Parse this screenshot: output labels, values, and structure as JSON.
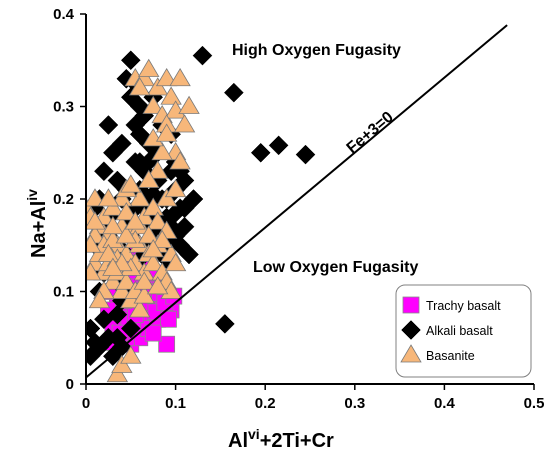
{
  "chart_data": {
    "type": "scatter",
    "title": "",
    "xlim": [
      0,
      0.5
    ],
    "ylim": [
      0,
      0.4
    ],
    "x_ticks": [
      "0",
      "0.1",
      "0.2",
      "0.3",
      "0.4",
      "0.5"
    ],
    "y_ticks": [
      "0",
      "0.1",
      "0.2",
      "0.3",
      "0.4"
    ],
    "x_ticks_values": [
      0,
      0.1,
      0.2,
      0.3,
      0.4,
      0.5
    ],
    "y_ticks_values": [
      0,
      0.1,
      0.2,
      0.3,
      0.4
    ],
    "xlabel": {
      "base1": "Al",
      "sup": "vi",
      "base2": "+2Ti+Cr"
    },
    "ylabel": {
      "base": "Na+Al",
      "sup": "iv"
    },
    "grid": false,
    "legend_position": "bottom-right",
    "annotations": {
      "high": "High Oxygen Fugasity",
      "low": "Low Oxygen Fugasity",
      "line": "Fe+3=0"
    },
    "reference_line": {
      "from": [
        0,
        0.007
      ],
      "to": [
        0.47,
        0.388
      ]
    },
    "series": [
      {
        "name": "Trachy basalt",
        "marker": "square",
        "color": "#ff00ff",
        "points": [
          [
            0.03,
            0.045
          ],
          [
            0.05,
            0.043
          ],
          [
            0.09,
            0.043
          ],
          [
            0.035,
            0.07
          ],
          [
            0.04,
            0.08
          ],
          [
            0.045,
            0.07
          ],
          [
            0.05,
            0.09
          ],
          [
            0.055,
            0.06
          ],
          [
            0.06,
            0.08
          ],
          [
            0.065,
            0.1
          ],
          [
            0.07,
            0.075
          ],
          [
            0.075,
            0.09
          ],
          [
            0.08,
            0.11
          ],
          [
            0.085,
            0.1
          ],
          [
            0.09,
            0.095
          ],
          [
            0.095,
            0.08
          ],
          [
            0.06,
            0.12
          ],
          [
            0.065,
            0.11
          ],
          [
            0.07,
            0.13
          ],
          [
            0.075,
            0.12
          ],
          [
            0.05,
            0.14
          ],
          [
            0.055,
            0.11
          ],
          [
            0.04,
            0.1
          ],
          [
            0.045,
            0.12
          ],
          [
            0.035,
            0.095
          ],
          [
            0.03,
            0.06
          ],
          [
            0.025,
            0.08
          ],
          [
            0.03,
            0.1
          ],
          [
            0.06,
            0.05
          ],
          [
            0.065,
            0.065
          ],
          [
            0.07,
            0.06
          ],
          [
            0.08,
            0.07
          ],
          [
            0.085,
            0.085
          ],
          [
            0.045,
            0.05
          ],
          [
            0.05,
            0.115
          ],
          [
            0.058,
            0.095
          ],
          [
            0.062,
            0.135
          ],
          [
            0.068,
            0.088
          ],
          [
            0.072,
            0.1
          ],
          [
            0.078,
            0.078
          ],
          [
            0.082,
            0.098
          ],
          [
            0.088,
            0.088
          ],
          [
            0.092,
            0.07
          ],
          [
            0.055,
            0.075
          ],
          [
            0.042,
            0.09
          ],
          [
            0.038,
            0.055
          ],
          [
            0.098,
            0.095
          ],
          [
            0.075,
            0.055
          ],
          [
            0.048,
            0.105
          ],
          [
            0.066,
            0.145
          ]
        ]
      },
      {
        "name": "Alkali basalt",
        "marker": "diamond",
        "color": "#000000",
        "points": [
          [
            0.005,
            0.03
          ],
          [
            0.01,
            0.045
          ],
          [
            0.02,
            0.07
          ],
          [
            0.03,
            0.03
          ],
          [
            0.04,
            0.04
          ],
          [
            0.035,
            0.05
          ],
          [
            0.045,
            0.33
          ],
          [
            0.05,
            0.31
          ],
          [
            0.05,
            0.35
          ],
          [
            0.055,
            0.325
          ],
          [
            0.06,
            0.3
          ],
          [
            0.06,
            0.27
          ],
          [
            0.065,
            0.29
          ],
          [
            0.07,
            0.24
          ],
          [
            0.07,
            0.26
          ],
          [
            0.075,
            0.31
          ],
          [
            0.08,
            0.22
          ],
          [
            0.085,
            0.2
          ],
          [
            0.09,
            0.18
          ],
          [
            0.095,
            0.23
          ],
          [
            0.1,
            0.21
          ],
          [
            0.105,
            0.19
          ],
          [
            0.11,
            0.17
          ],
          [
            0.115,
            0.14
          ],
          [
            0.13,
            0.355
          ],
          [
            0.165,
            0.315
          ],
          [
            0.195,
            0.25
          ],
          [
            0.215,
            0.258
          ],
          [
            0.245,
            0.248
          ],
          [
            0.155,
            0.065
          ],
          [
            0.025,
            0.28
          ],
          [
            0.03,
            0.25
          ],
          [
            0.035,
            0.22
          ],
          [
            0.04,
            0.2
          ],
          [
            0.045,
            0.18
          ],
          [
            0.05,
            0.16
          ],
          [
            0.055,
            0.19
          ],
          [
            0.06,
            0.21
          ],
          [
            0.065,
            0.23
          ],
          [
            0.07,
            0.2
          ],
          [
            0.075,
            0.18
          ],
          [
            0.08,
            0.16
          ],
          [
            0.085,
            0.14
          ],
          [
            0.09,
            0.15
          ],
          [
            0.095,
            0.17
          ],
          [
            0.1,
            0.16
          ],
          [
            0.105,
            0.15
          ],
          [
            0.01,
            0.19
          ],
          [
            0.015,
            0.2
          ],
          [
            0.02,
            0.17
          ],
          [
            0.025,
            0.16
          ],
          [
            0.03,
            0.13
          ],
          [
            0.035,
            0.11
          ],
          [
            0.04,
            0.09
          ],
          [
            0.045,
            0.1
          ],
          [
            0.02,
            0.12
          ],
          [
            0.015,
            0.1
          ],
          [
            0.1,
            0.24
          ],
          [
            0.11,
            0.22
          ],
          [
            0.095,
            0.27
          ],
          [
            0.085,
            0.28
          ],
          [
            0.055,
            0.28
          ],
          [
            0.06,
            0.24
          ],
          [
            0.04,
            0.26
          ],
          [
            0.02,
            0.23
          ],
          [
            0.01,
            0.15
          ],
          [
            0.005,
            0.06
          ],
          [
            0.025,
            0.05
          ],
          [
            0.09,
            0.2
          ],
          [
            0.07,
            0.17
          ],
          [
            0.065,
            0.15
          ],
          [
            0.12,
            0.2
          ],
          [
            0.08,
            0.25
          ],
          [
            0.06,
            0.135
          ],
          [
            0.075,
            0.14
          ],
          [
            0.035,
            0.075
          ],
          [
            0.05,
            0.06
          ],
          [
            0.11,
            0.19
          ],
          [
            0.095,
            0.205
          ],
          [
            0.045,
            0.21
          ],
          [
            0.015,
            0.04
          ],
          [
            0.105,
            0.23
          ],
          [
            0.09,
            0.135
          ],
          [
            0.04,
            0.145
          ],
          [
            0.03,
            0.185
          ],
          [
            0.055,
            0.24
          ],
          [
            0.065,
            0.19
          ],
          [
            0.085,
            0.175
          ],
          [
            0.1,
            0.185
          ],
          [
            0.075,
            0.205
          ]
        ]
      },
      {
        "name": "Basanite",
        "marker": "triangle",
        "color": "#f7b77a",
        "points": [
          [
            0.0,
            0.19
          ],
          [
            0.005,
            0.18
          ],
          [
            0.01,
            0.2
          ],
          [
            0.015,
            0.17
          ],
          [
            0.02,
            0.18
          ],
          [
            0.025,
            0.16
          ],
          [
            0.03,
            0.19
          ],
          [
            0.035,
            0.15
          ],
          [
            0.04,
            0.17
          ],
          [
            0.045,
            0.14
          ],
          [
            0.05,
            0.16
          ],
          [
            0.055,
            0.13
          ],
          [
            0.06,
            0.15
          ],
          [
            0.065,
            0.12
          ],
          [
            0.07,
            0.14
          ],
          [
            0.075,
            0.13
          ],
          [
            0.08,
            0.15
          ],
          [
            0.085,
            0.12
          ],
          [
            0.09,
            0.11
          ],
          [
            0.095,
            0.1
          ],
          [
            0.01,
            0.13
          ],
          [
            0.015,
            0.14
          ],
          [
            0.02,
            0.12
          ],
          [
            0.025,
            0.13
          ],
          [
            0.03,
            0.11
          ],
          [
            0.035,
            0.12
          ],
          [
            0.04,
            0.1
          ],
          [
            0.045,
            0.11
          ],
          [
            0.05,
            0.09
          ],
          [
            0.055,
            0.1
          ],
          [
            0.06,
            0.08
          ],
          [
            0.065,
            0.095
          ],
          [
            0.005,
            0.12
          ],
          [
            0.01,
            0.16
          ],
          [
            0.02,
            0.15
          ],
          [
            0.03,
            0.155
          ],
          [
            0.035,
            0.01
          ],
          [
            0.04,
            0.02
          ],
          [
            0.05,
            0.03
          ],
          [
            0.055,
            0.33
          ],
          [
            0.065,
            0.33
          ],
          [
            0.07,
            0.34
          ],
          [
            0.08,
            0.32
          ],
          [
            0.09,
            0.33
          ],
          [
            0.075,
            0.3
          ],
          [
            0.085,
            0.29
          ],
          [
            0.095,
            0.31
          ],
          [
            0.1,
            0.295
          ],
          [
            0.09,
            0.28
          ],
          [
            0.1,
            0.25
          ],
          [
            0.085,
            0.25
          ],
          [
            0.075,
            0.265
          ],
          [
            0.08,
            0.23
          ],
          [
            0.07,
            0.22
          ],
          [
            0.06,
            0.2
          ],
          [
            0.04,
            0.2
          ],
          [
            0.045,
            0.21
          ],
          [
            0.09,
            0.2
          ],
          [
            0.1,
            0.21
          ],
          [
            0.105,
            0.24
          ],
          [
            0.11,
            0.28
          ],
          [
            0.115,
            0.3
          ],
          [
            0.05,
            0.215
          ],
          [
            0.025,
            0.2
          ],
          [
            0.03,
            0.17
          ],
          [
            0.06,
            0.17
          ],
          [
            0.065,
            0.18
          ],
          [
            0.075,
            0.19
          ],
          [
            0.08,
            0.175
          ],
          [
            0.09,
            0.165
          ],
          [
            0.095,
            0.14
          ],
          [
            0.1,
            0.13
          ],
          [
            0.02,
            0.1
          ],
          [
            0.015,
            0.09
          ],
          [
            0.005,
            0.15
          ],
          [
            0.045,
            0.185
          ],
          [
            0.055,
            0.155
          ],
          [
            0.07,
            0.16
          ],
          [
            0.085,
            0.155
          ],
          [
            0.035,
            0.135
          ],
          [
            0.05,
            0.125
          ],
          [
            0.065,
            0.11
          ],
          [
            0.08,
            0.105
          ],
          [
            0.025,
            0.14
          ],
          [
            0.04,
            0.13
          ],
          [
            0.01,
            0.175
          ],
          [
            0.09,
            0.27
          ],
          [
            0.105,
            0.33
          ],
          [
            0.06,
            0.32
          ],
          [
            0.045,
            0.16
          ],
          [
            0.075,
            0.145
          ],
          [
            0.055,
            0.175
          ],
          [
            0.03,
            0.125
          ]
        ]
      }
    ]
  }
}
